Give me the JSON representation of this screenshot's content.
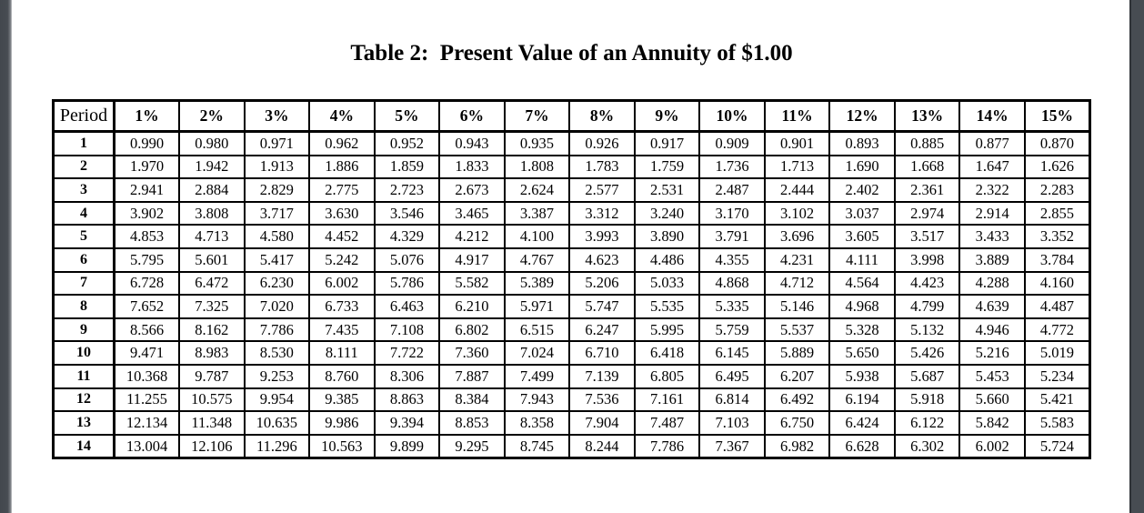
{
  "title": "Table 2:  Present Value of an Annuity of $1.00",
  "table": {
    "period_header": "Period",
    "rate_headers": [
      "1%",
      "2%",
      "3%",
      "4%",
      "5%",
      "6%",
      "7%",
      "8%",
      "9%",
      "10%",
      "11%",
      "12%",
      "13%",
      "14%",
      "15%"
    ],
    "rows": [
      {
        "period": "1",
        "values": [
          "0.990",
          "0.980",
          "0.971",
          "0.962",
          "0.952",
          "0.943",
          "0.935",
          "0.926",
          "0.917",
          "0.909",
          "0.901",
          "0.893",
          "0.885",
          "0.877",
          "0.870"
        ]
      },
      {
        "period": "2",
        "values": [
          "1.970",
          "1.942",
          "1.913",
          "1.886",
          "1.859",
          "1.833",
          "1.808",
          "1.783",
          "1.759",
          "1.736",
          "1.713",
          "1.690",
          "1.668",
          "1.647",
          "1.626"
        ]
      },
      {
        "period": "3",
        "values": [
          "2.941",
          "2.884",
          "2.829",
          "2.775",
          "2.723",
          "2.673",
          "2.624",
          "2.577",
          "2.531",
          "2.487",
          "2.444",
          "2.402",
          "2.361",
          "2.322",
          "2.283"
        ]
      },
      {
        "period": "4",
        "values": [
          "3.902",
          "3.808",
          "3.717",
          "3.630",
          "3.546",
          "3.465",
          "3.387",
          "3.312",
          "3.240",
          "3.170",
          "3.102",
          "3.037",
          "2.974",
          "2.914",
          "2.855"
        ]
      },
      {
        "period": "5",
        "values": [
          "4.853",
          "4.713",
          "4.580",
          "4.452",
          "4.329",
          "4.212",
          "4.100",
          "3.993",
          "3.890",
          "3.791",
          "3.696",
          "3.605",
          "3.517",
          "3.433",
          "3.352"
        ]
      },
      {
        "period": "6",
        "values": [
          "5.795",
          "5.601",
          "5.417",
          "5.242",
          "5.076",
          "4.917",
          "4.767",
          "4.623",
          "4.486",
          "4.355",
          "4.231",
          "4.111",
          "3.998",
          "3.889",
          "3.784"
        ]
      },
      {
        "period": "7",
        "values": [
          "6.728",
          "6.472",
          "6.230",
          "6.002",
          "5.786",
          "5.582",
          "5.389",
          "5.206",
          "5.033",
          "4.868",
          "4.712",
          "4.564",
          "4.423",
          "4.288",
          "4.160"
        ]
      },
      {
        "period": "8",
        "values": [
          "7.652",
          "7.325",
          "7.020",
          "6.733",
          "6.463",
          "6.210",
          "5.971",
          "5.747",
          "5.535",
          "5.335",
          "5.146",
          "4.968",
          "4.799",
          "4.639",
          "4.487"
        ]
      },
      {
        "period": "9",
        "values": [
          "8.566",
          "8.162",
          "7.786",
          "7.435",
          "7.108",
          "6.802",
          "6.515",
          "6.247",
          "5.995",
          "5.759",
          "5.537",
          "5.328",
          "5.132",
          "4.946",
          "4.772"
        ]
      },
      {
        "period": "10",
        "values": [
          "9.471",
          "8.983",
          "8.530",
          "8.111",
          "7.722",
          "7.360",
          "7.024",
          "6.710",
          "6.418",
          "6.145",
          "5.889",
          "5.650",
          "5.426",
          "5.216",
          "5.019"
        ]
      },
      {
        "period": "11",
        "values": [
          "10.368",
          "9.787",
          "9.253",
          "8.760",
          "8.306",
          "7.887",
          "7.499",
          "7.139",
          "6.805",
          "6.495",
          "6.207",
          "5.938",
          "5.687",
          "5.453",
          "5.234"
        ]
      },
      {
        "period": "12",
        "values": [
          "11.255",
          "10.575",
          "9.954",
          "9.385",
          "8.863",
          "8.384",
          "7.943",
          "7.536",
          "7.161",
          "6.814",
          "6.492",
          "6.194",
          "5.918",
          "5.660",
          "5.421"
        ]
      },
      {
        "period": "13",
        "values": [
          "12.134",
          "11.348",
          "10.635",
          "9.986",
          "9.394",
          "8.853",
          "8.358",
          "7.904",
          "7.487",
          "7.103",
          "6.750",
          "6.424",
          "6.122",
          "5.842",
          "5.583"
        ]
      },
      {
        "period": "14",
        "values": [
          "13.004",
          "12.106",
          "11.296",
          "10.563",
          "9.899",
          "9.295",
          "8.745",
          "8.244",
          "7.786",
          "7.367",
          "6.982",
          "6.628",
          "6.302",
          "6.002",
          "5.724"
        ]
      }
    ]
  },
  "colors": {
    "page_background": "#ffffff",
    "edge_bar": "#474c52",
    "edge_bar_highlight": "#7d8186",
    "table_border": "#000000",
    "text": "#000000"
  }
}
